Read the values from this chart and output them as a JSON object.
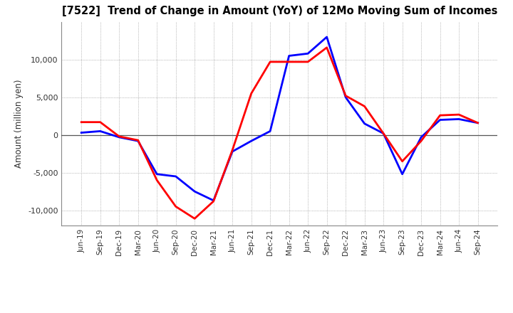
{
  "title": "[7522]  Trend of Change in Amount (YoY) of 12Mo Moving Sum of Incomes",
  "ylabel": "Amount (million yen)",
  "x_labels": [
    "Jun-19",
    "Sep-19",
    "Dec-19",
    "Mar-20",
    "Jun-20",
    "Sep-20",
    "Dec-20",
    "Mar-21",
    "Jun-21",
    "Sep-21",
    "Dec-21",
    "Mar-22",
    "Jun-22",
    "Sep-22",
    "Dec-22",
    "Mar-23",
    "Jun-23",
    "Sep-23",
    "Dec-23",
    "Mar-24",
    "Jun-24",
    "Sep-24"
  ],
  "ordinary_income": [
    300,
    500,
    -300,
    -800,
    -5200,
    -5500,
    -7500,
    -8700,
    -2200,
    -800,
    500,
    10500,
    10800,
    13000,
    5000,
    1500,
    200,
    -5200,
    -300,
    2000,
    2100,
    1600
  ],
  "net_income": [
    1700,
    1700,
    -200,
    -700,
    -6000,
    -9500,
    -11100,
    -8800,
    -2000,
    5500,
    9700,
    9700,
    9700,
    11600,
    5200,
    3800,
    200,
    -3500,
    -800,
    2600,
    2700,
    1600
  ],
  "ordinary_color": "#0000ff",
  "net_color": "#ff0000",
  "ylim": [
    -12000,
    15000
  ],
  "yticks": [
    -10000,
    -5000,
    0,
    5000,
    10000
  ],
  "bg_color": "#ffffff",
  "plot_bg_color": "#ffffff",
  "grid_color": "#888888",
  "line_width": 2.0
}
